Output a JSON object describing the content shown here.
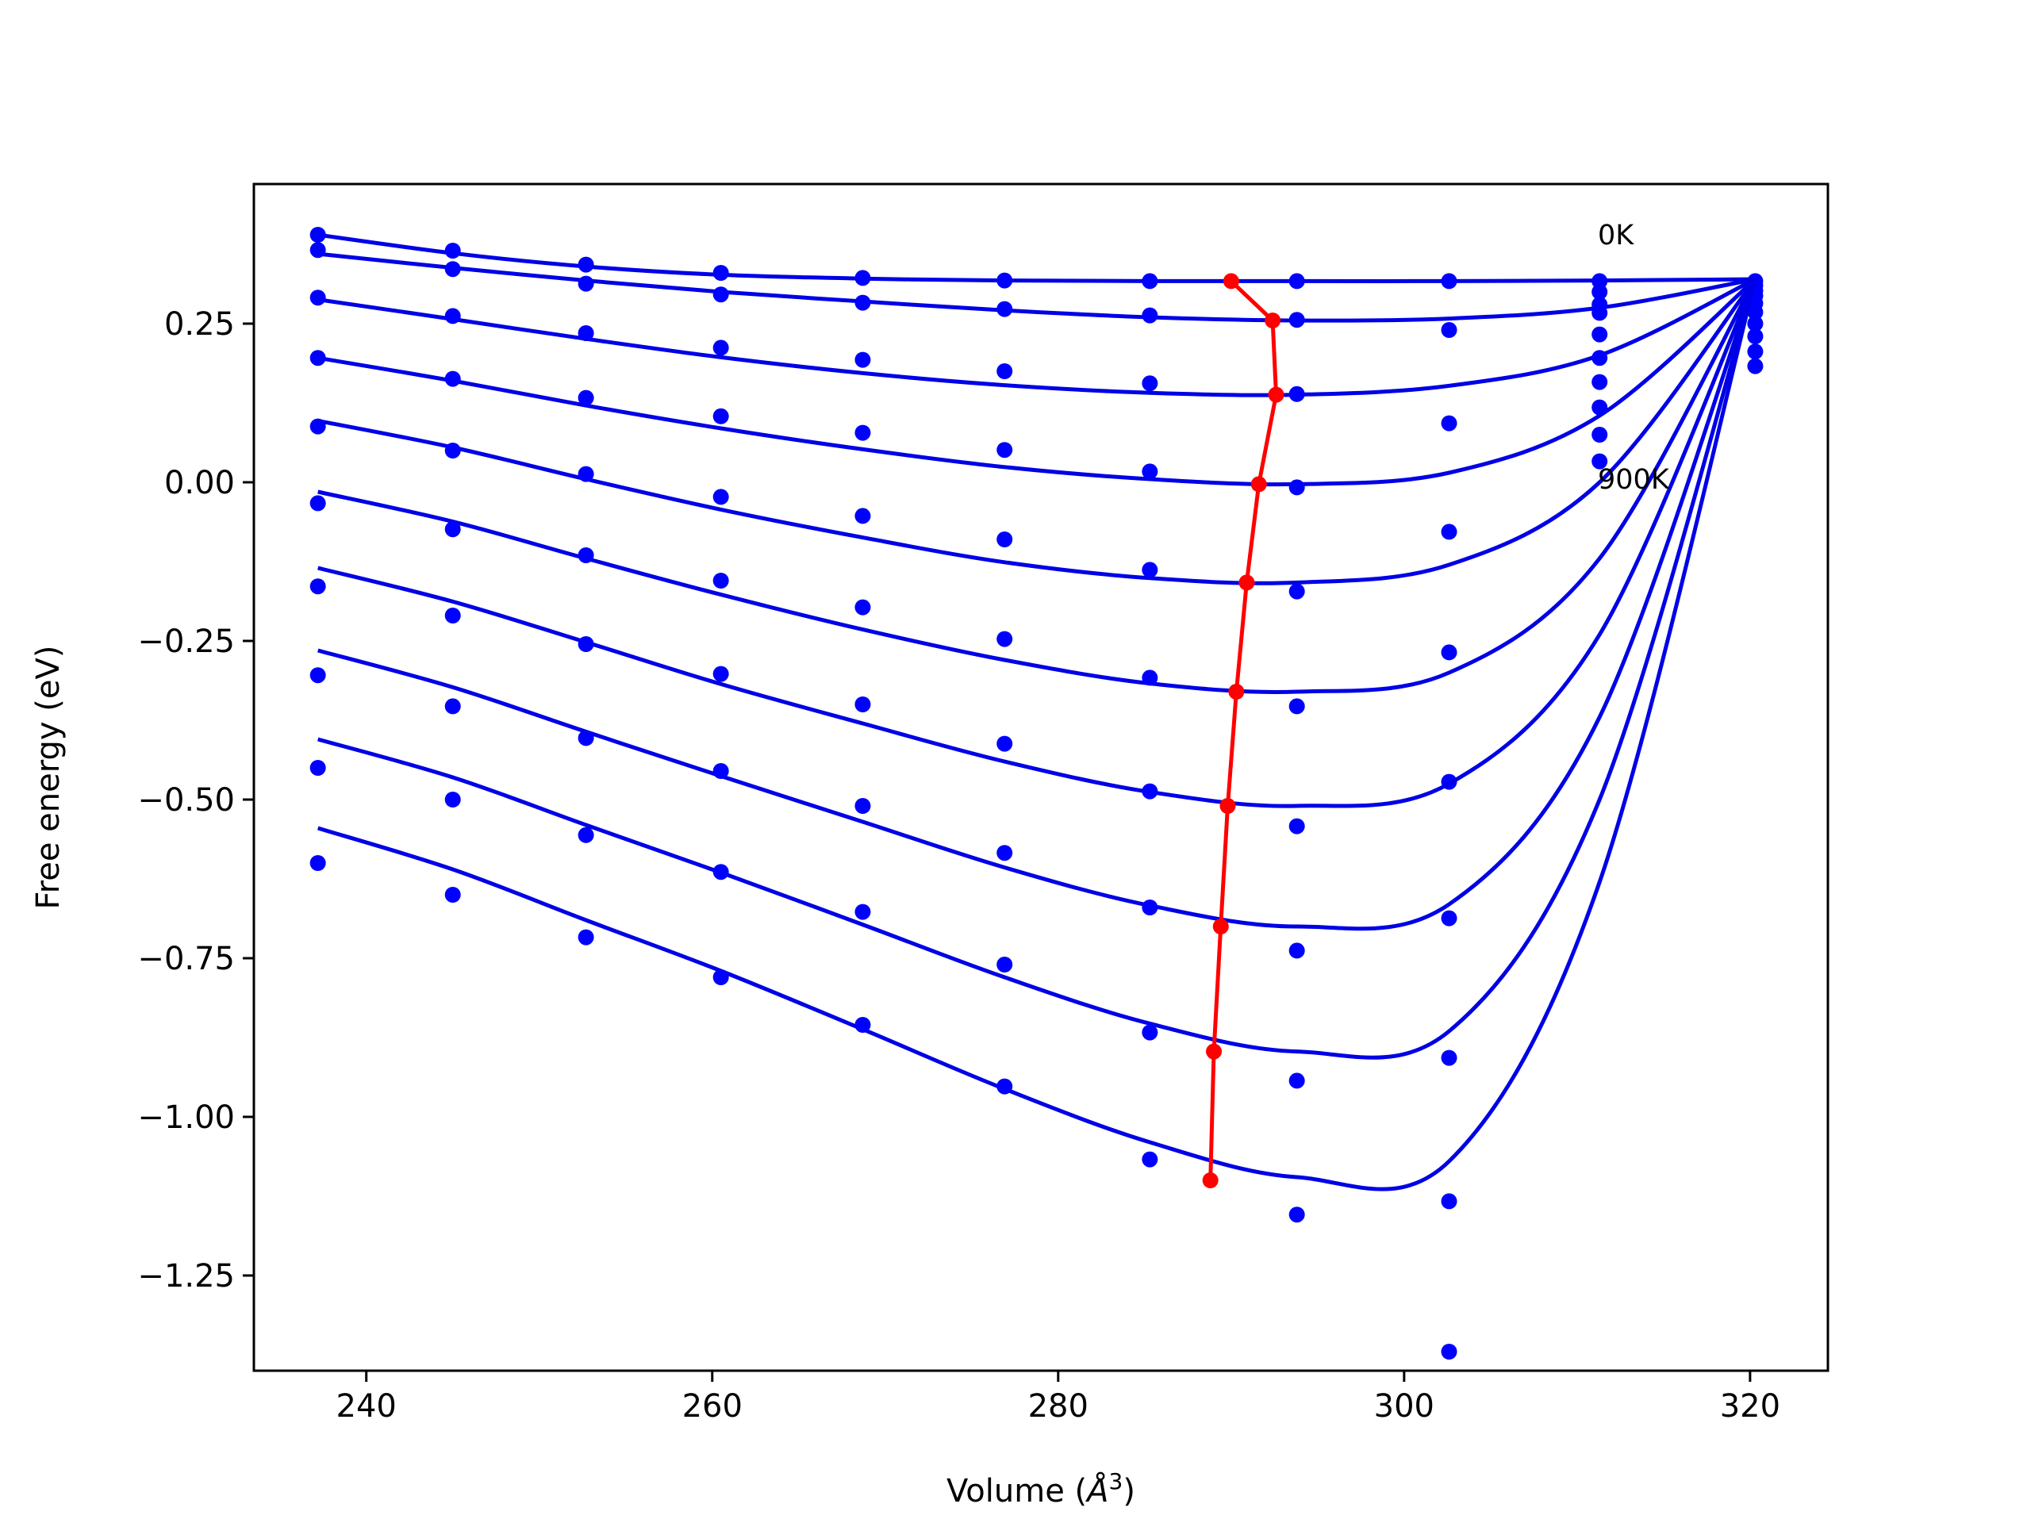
{
  "chart_data": {
    "type": "line",
    "title": "",
    "xlabel": "Volume",
    "xlabel_unit": "Å",
    "xlabel_unit_exp": "3",
    "ylabel": "Free energy (eV)",
    "xlim": [
      233.5,
      324.5
    ],
    "ylim": [
      -1.4,
      0.47
    ],
    "xticks": [
      240,
      260,
      280,
      300,
      320
    ],
    "xtick_labels": [
      "240",
      "260",
      "280",
      "300",
      "320"
    ],
    "yticks": [
      0.25,
      0.0,
      -0.25,
      -0.5,
      -0.75,
      -1.0,
      -1.25
    ],
    "ytick_labels": [
      "0.25",
      "0.00",
      "−0.25",
      "−0.50",
      "−0.75",
      "−1.00",
      "−1.25"
    ],
    "grid": false,
    "colors": {
      "curves": "#0000e6",
      "points": "#0000ff",
      "minima": "#ff0000"
    },
    "annotations": [
      {
        "text": "0K",
        "x": 311.2,
        "y": 0.375
      },
      {
        "text": "900K",
        "x": 311.2,
        "y": -0.01
      }
    ],
    "point_volumes": [
      237.2,
      245.0,
      252.7,
      260.5,
      268.7,
      276.9,
      285.3,
      293.8,
      302.6,
      311.3,
      320.3
    ],
    "series": [
      {
        "points": [
          0.39,
          0.365,
          0.343,
          0.33,
          0.322,
          0.318,
          0.317,
          0.317,
          0.317,
          0.317,
          0.317
        ],
        "fit": [
          0.39,
          0.361,
          0.34,
          0.327,
          0.321,
          0.318,
          0.317,
          0.317,
          0.317,
          0.318,
          0.32
        ]
      },
      {
        "points": [
          0.366,
          0.336,
          0.313,
          0.296,
          0.283,
          0.273,
          0.263,
          0.256,
          0.24,
          0.3,
          0.31
        ],
        "fit": [
          0.36,
          0.338,
          0.318,
          0.3,
          0.285,
          0.271,
          0.26,
          0.255,
          0.258,
          0.275,
          0.32
        ]
      },
      {
        "points": [
          0.291,
          0.262,
          0.235,
          0.212,
          0.193,
          0.175,
          0.156,
          0.139,
          0.093,
          0.28,
          0.302
        ],
        "fit": [
          0.288,
          0.257,
          0.226,
          0.197,
          0.172,
          0.153,
          0.141,
          0.138,
          0.152,
          0.2,
          0.32
        ]
      },
      {
        "points": [
          0.196,
          0.163,
          0.133,
          0.104,
          0.078,
          0.051,
          0.017,
          -0.008,
          -0.078,
          0.267,
          0.294
        ],
        "fit": [
          0.196,
          0.16,
          0.121,
          0.085,
          0.052,
          0.024,
          0.005,
          -0.003,
          0.015,
          0.105,
          0.32
        ]
      },
      {
        "points": [
          0.088,
          0.05,
          0.013,
          -0.023,
          -0.053,
          -0.09,
          -0.138,
          -0.172,
          -0.268,
          0.233,
          0.282
        ],
        "fit": [
          0.097,
          0.055,
          0.005,
          -0.043,
          -0.087,
          -0.126,
          -0.151,
          -0.158,
          -0.13,
          0.0,
          0.32
        ]
      },
      {
        "points": [
          -0.033,
          -0.074,
          -0.115,
          -0.155,
          -0.197,
          -0.247,
          -0.308,
          -0.353,
          -0.472,
          0.196,
          0.268
        ],
        "fit": [
          -0.015,
          -0.062,
          -0.12,
          -0.177,
          -0.232,
          -0.28,
          -0.317,
          -0.33,
          -0.3,
          -0.12,
          0.32
        ]
      },
      {
        "points": [
          -0.164,
          -0.21,
          -0.255,
          -0.302,
          -0.35,
          -0.412,
          -0.487,
          -0.542,
          -0.687,
          0.158,
          0.25
        ],
        "fit": [
          -0.135,
          -0.188,
          -0.252,
          -0.318,
          -0.38,
          -0.44,
          -0.488,
          -0.51,
          -0.475,
          -0.24,
          0.32
        ]
      },
      {
        "points": [
          -0.304,
          -0.353,
          -0.403,
          -0.455,
          -0.51,
          -0.584,
          -0.67,
          -0.738,
          -0.907,
          0.118,
          0.23
        ],
        "fit": [
          -0.265,
          -0.323,
          -0.393,
          -0.463,
          -0.535,
          -0.607,
          -0.667,
          -0.7,
          -0.665,
          -0.37,
          0.32
        ]
      },
      {
        "points": [
          -0.45,
          -0.5,
          -0.556,
          -0.614,
          -0.677,
          -0.76,
          -0.867,
          -0.943,
          -1.133,
          0.075,
          0.206
        ],
        "fit": [
          -0.405,
          -0.465,
          -0.54,
          -0.615,
          -0.697,
          -0.78,
          -0.853,
          -0.897,
          -0.865,
          -0.5,
          0.32
        ]
      },
      {
        "points": [
          -0.6,
          -0.65,
          -0.717,
          -0.78,
          -0.855,
          -0.952,
          -1.067,
          -1.154,
          -1.37,
          0.033,
          0.183
        ],
        "fit": [
          -0.545,
          -0.61,
          -0.69,
          -0.77,
          -0.862,
          -0.956,
          -1.04,
          -1.095,
          -1.07,
          -0.63,
          0.32
        ]
      }
    ],
    "minima": {
      "x": [
        290.0,
        292.4,
        292.6,
        291.6,
        290.9,
        290.3,
        289.8,
        289.4,
        289.0,
        288.8
      ],
      "y": [
        0.317,
        0.255,
        0.138,
        -0.003,
        -0.158,
        -0.33,
        -0.51,
        -0.7,
        -0.897,
        -1.1
      ]
    }
  }
}
